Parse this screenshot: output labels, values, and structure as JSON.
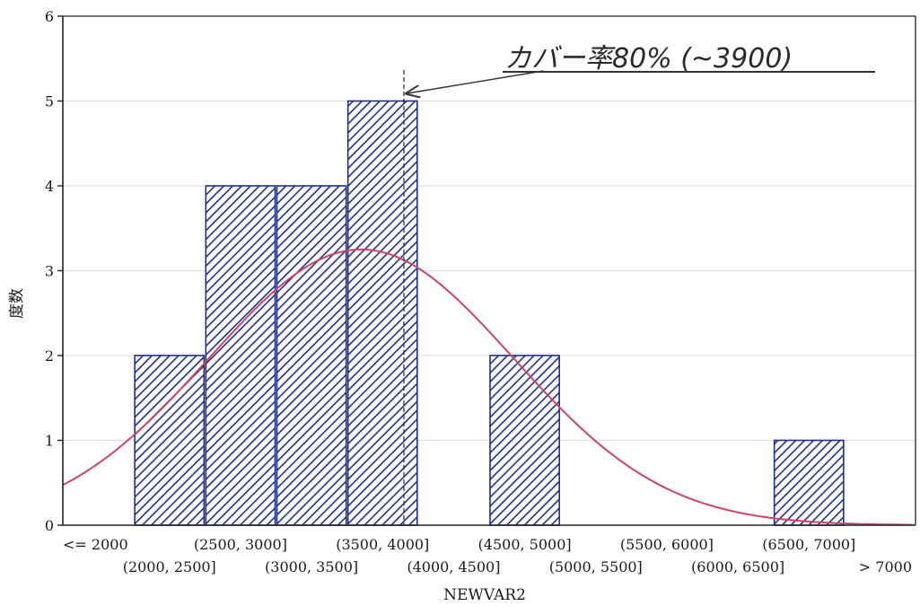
{
  "chart_data": {
    "type": "bar",
    "xlabel": "NEWVAR2",
    "ylabel": "度数",
    "ylim": [
      0,
      6
    ],
    "yticks": [
      0,
      1,
      2,
      3,
      4,
      5,
      6
    ],
    "grid": true,
    "bins": [
      {
        "label": "<= 2000",
        "value": 0
      },
      {
        "label": "(2000, 2500]",
        "value": 2
      },
      {
        "label": "(2500, 3000]",
        "value": 4
      },
      {
        "label": "(3000, 3500]",
        "value": 4
      },
      {
        "label": "(3500, 4000]",
        "value": 5
      },
      {
        "label": "(4000, 4500]",
        "value": 0
      },
      {
        "label": "(4500, 5000]",
        "value": 2
      },
      {
        "label": "(5000, 5500]",
        "value": 0
      },
      {
        "label": "(5500, 6000]",
        "value": 0
      },
      {
        "label": "(6000, 6500]",
        "value": 0
      },
      {
        "label": "(6500, 7000]",
        "value": 1
      },
      {
        "label": "> 7000",
        "value": 0
      }
    ],
    "normal_curve": {
      "color": "#cc4466",
      "mean": 3600,
      "sd": 1070,
      "peak": 3.25
    },
    "marker": {
      "value": 3900,
      "annotation": "カバー率80% (~3900)"
    },
    "colors": {
      "bar_fill": "#ffffff",
      "bar_hatch": "#1e2f8c",
      "bar_edge": "#1e2f8c",
      "grid": "#dddddd",
      "axis": "#222222"
    }
  }
}
